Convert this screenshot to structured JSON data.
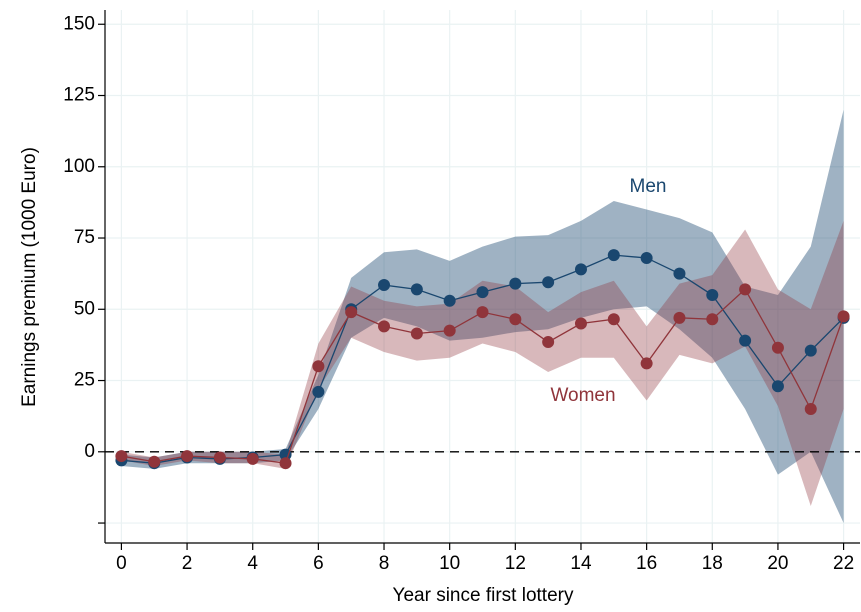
{
  "chart_data": {
    "type": "line-band",
    "x_label": "Year since first lottery",
    "y_label": "Earnings premium (1000 Euro)",
    "x": [
      0,
      1,
      2,
      3,
      4,
      5,
      6,
      7,
      8,
      9,
      10,
      11,
      12,
      13,
      14,
      15,
      16,
      17,
      18,
      19,
      20,
      21,
      22
    ],
    "series": [
      {
        "name": "Men",
        "color": "#1a476f",
        "values": [
          -3,
          -4,
          -2,
          -2.5,
          -2,
          -1,
          21,
          50,
          58.5,
          57,
          53,
          56,
          59,
          59.5,
          64,
          69,
          68,
          62.5,
          55,
          39,
          23,
          35.5,
          47
        ],
        "lower": [
          -5,
          -6,
          -4,
          -4,
          -4,
          -3,
          15,
          40,
          47,
          44,
          39,
          40,
          42,
          43,
          47,
          50,
          51,
          43,
          33,
          15,
          -8,
          0,
          -25
        ],
        "upper": [
          -1,
          -2,
          0,
          0,
          0,
          1,
          27,
          61,
          70,
          71,
          67,
          72,
          75.5,
          76,
          81,
          88,
          85,
          82,
          77,
          58,
          55,
          72,
          120
        ]
      },
      {
        "name": "Women",
        "color": "#90353b",
        "values": [
          -1.5,
          -3.5,
          -1.5,
          -2,
          -2.5,
          -4,
          30,
          49,
          44,
          41.5,
          42.5,
          49,
          46.5,
          38.5,
          45,
          46.5,
          31,
          47,
          46.5,
          57,
          36.5,
          15,
          47.5
        ],
        "lower": [
          -3,
          -5,
          -3,
          -4,
          -4,
          -6,
          22,
          40,
          35,
          32,
          33,
          38,
          35,
          28,
          33,
          33,
          18,
          34,
          31,
          37,
          16,
          -19,
          15
        ],
        "upper": [
          0,
          -2,
          0,
          0,
          0,
          -1,
          38,
          58,
          53,
          51,
          52,
          60,
          58,
          49,
          56,
          60,
          44,
          59,
          62,
          78,
          57,
          50,
          81
        ]
      }
    ],
    "xlim": [
      -0.5,
      22.5
    ],
    "ylim": [
      -32,
      155
    ],
    "xticks": [
      0,
      2,
      4,
      6,
      8,
      10,
      12,
      14,
      16,
      18,
      20,
      22
    ],
    "yticks": [
      {
        "value": -25,
        "label": null
      },
      0,
      25,
      50,
      75,
      100,
      125,
      150
    ],
    "reference_line": 0,
    "grid": true
  }
}
